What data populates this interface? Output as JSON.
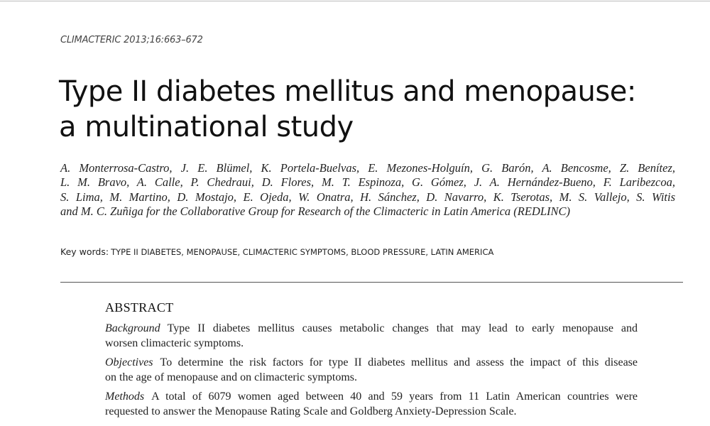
{
  "header": {
    "journal": "CLIMACTERIC 2013;16:663–672",
    "title": [
      "Type II diabetes mellitus and menopause:",
      "a multinational study"
    ],
    "authors": [
      "A. Monterrosa-Castro, J. E. Blümel, K. Portela-Buelvas, E. Mezones-Holguín, G. Barón, A. Bencosme, Z. Benítez,",
      "L. M. Bravo, A. Calle, P. Chedraui, D. Flores, M. T. Espinoza, G. Gómez, J. A. Hernández-Bueno, F. Laribezcoa,",
      "S. Lima, M. Martino, D. Mostajo, E. Ojeda, W. Onatra, H. Sánchez, D. Navarro, K. Tserotas, M. S. Vallejo, S. Witis",
      "and M. C. Zuñiga for the Collaborative Group for Research of the Climacteric in Latin America (REDLINC)"
    ]
  },
  "keywords": {
    "label": "Key words:",
    "value": "TYPE II DIABETES, MENOPAUSE, CLIMACTERIC SYMPTOMS, BLOOD PRESSURE, LATIN AMERICA"
  },
  "abstract": {
    "heading": "ABSTRACT",
    "sections": [
      {
        "label": "Background",
        "lines": [
          "Type II diabetes mellitus causes metabolic changes that may lead to early menopause and",
          "worsen climacteric symptoms."
        ]
      },
      {
        "label": "Objectives",
        "lines": [
          "To determine the risk factors for type II diabetes mellitus and assess the impact of this disease",
          "on the age of menopause and on climacteric symptoms."
        ]
      },
      {
        "label": "Methods",
        "lines": [
          "A total of 6079 women aged between 40 and 59 years from 11 Latin American countries were",
          "requested to answer the Menopause Rating Scale and Goldberg Anxiety-Depression Scale."
        ]
      }
    ]
  }
}
